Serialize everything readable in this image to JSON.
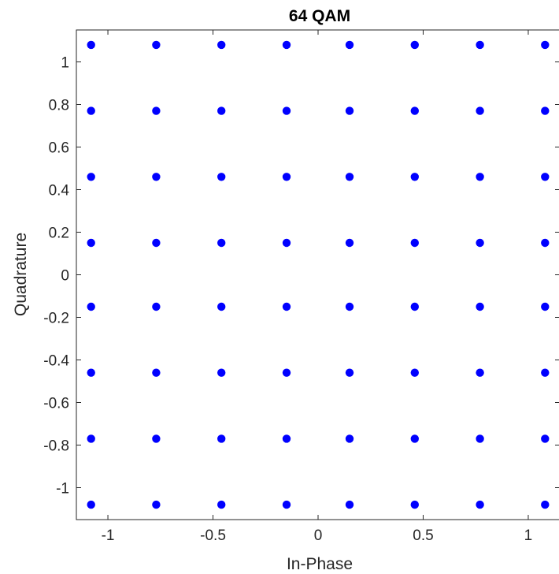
{
  "chart_data": {
    "type": "scatter",
    "title": "64 QAM",
    "xlabel": "In-Phase",
    "ylabel": "Quadrature",
    "xlim": [
      -1.15,
      1.15
    ],
    "ylim": [
      -1.15,
      1.15
    ],
    "xticks": [
      -1,
      -0.5,
      0,
      0.5,
      1
    ],
    "xtick_labels": [
      "-1",
      "-0.5",
      "0",
      "0.5",
      "1"
    ],
    "yticks": [
      -1,
      -0.8,
      -0.6,
      -0.4,
      -0.2,
      0,
      0.2,
      0.4,
      0.6,
      0.8,
      1
    ],
    "ytick_labels": [
      "-1",
      "-0.8",
      "-0.6",
      "-0.4",
      "-0.2",
      "0",
      "0.2",
      "0.4",
      "0.6",
      "0.8",
      "1"
    ],
    "grid": false,
    "marker_color": "#0000ff",
    "levels": [
      -1.08,
      -0.77,
      -0.46,
      -0.15,
      0.15,
      0.46,
      0.77,
      1.08
    ]
  }
}
